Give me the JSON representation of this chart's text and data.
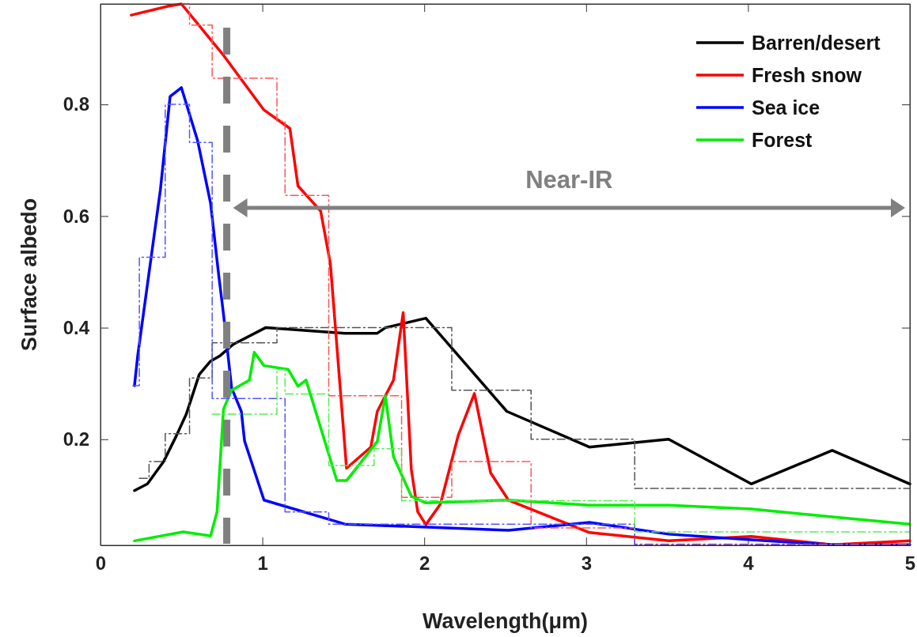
{
  "chart_data": {
    "type": "line",
    "xlabel": "Wavelength(μm)",
    "ylabel": "Surface albedo",
    "xlim": [
      0,
      5
    ],
    "ylim": [
      0.01,
      0.98
    ],
    "xticks": [
      0,
      1,
      2,
      3,
      4,
      5
    ],
    "yticks": [
      0.2,
      0.4,
      0.6,
      0.8
    ],
    "grid": false,
    "legend": "top right",
    "marker": "none",
    "series": [
      {
        "name": "Barren/desert",
        "color": "#000000",
        "x": [
          0.21,
          0.29,
          0.39,
          0.47,
          0.53,
          0.61,
          0.68,
          0.74,
          0.82,
          1.02,
          1.51,
          1.71,
          1.76,
          2.01,
          2.51,
          3.02,
          3.51,
          4.02,
          4.52,
          5.0
        ],
        "values": [
          0.108,
          0.12,
          0.16,
          0.207,
          0.245,
          0.316,
          0.34,
          0.35,
          0.37,
          0.4,
          0.39,
          0.39,
          0.4,
          0.417,
          0.25,
          0.186,
          0.2,
          0.12,
          0.18,
          0.12
        ]
      },
      {
        "name": "Fresh snow",
        "color": "#ff0000",
        "x": [
          0.19,
          0.42,
          0.5,
          0.76,
          1.01,
          1.17,
          1.22,
          1.36,
          1.42,
          1.52,
          1.67,
          1.71,
          1.81,
          1.87,
          1.92,
          1.96,
          2.01,
          2.1,
          2.21,
          2.31,
          2.41,
          2.52,
          3.02,
          3.51,
          4.02,
          4.52,
          5.0
        ],
        "values": [
          0.96,
          0.976,
          0.98,
          0.888,
          0.79,
          0.757,
          0.654,
          0.609,
          0.515,
          0.148,
          0.186,
          0.25,
          0.306,
          0.427,
          0.146,
          0.07,
          0.047,
          0.084,
          0.207,
          0.282,
          0.14,
          0.091,
          0.033,
          0.018,
          0.026,
          0.011,
          0.018
        ]
      },
      {
        "name": "Sea ice",
        "color": "#0000ff",
        "x": [
          0.21,
          0.23,
          0.37,
          0.43,
          0.5,
          0.6,
          0.68,
          0.73,
          0.76,
          0.81,
          0.87,
          0.89,
          1.01,
          1.51,
          2.52,
          3.02,
          3.51,
          4.02,
          4.52,
          5.0
        ],
        "values": [
          0.296,
          0.35,
          0.647,
          0.814,
          0.83,
          0.735,
          0.623,
          0.495,
          0.424,
          0.292,
          0.25,
          0.197,
          0.091,
          0.048,
          0.037,
          0.051,
          0.03,
          0.02,
          0.011,
          0.011
        ]
      },
      {
        "name": "Forest",
        "color": "#00ee00",
        "x": [
          0.21,
          0.51,
          0.68,
          0.72,
          0.76,
          0.81,
          0.92,
          0.95,
          1.01,
          1.16,
          1.22,
          1.27,
          1.46,
          1.52,
          1.71,
          1.76,
          1.81,
          1.92,
          2.01,
          2.52,
          3.02,
          3.51,
          4.02,
          4.52,
          5.0
        ],
        "values": [
          0.018,
          0.034,
          0.027,
          0.07,
          0.254,
          0.288,
          0.306,
          0.356,
          0.332,
          0.325,
          0.295,
          0.306,
          0.126,
          0.126,
          0.196,
          0.278,
          0.169,
          0.098,
          0.086,
          0.091,
          0.082,
          0.082,
          0.075,
          0.061,
          0.048
        ]
      },
      {
        "type": "step",
        "color": "#555555",
        "line_style": "dashed",
        "x": [
          0.24,
          0.3,
          0.4,
          0.55,
          0.69,
          1.09,
          2.17,
          2.66,
          3.3,
          5.0
        ],
        "values": [
          0.13,
          0.16,
          0.21,
          0.31,
          0.373,
          0.4,
          0.288,
          0.2,
          0.112,
          0.112
        ]
      },
      {
        "type": "step",
        "color": "#ff5555",
        "line_style": "dashed",
        "x": [
          0.5,
          0.55,
          0.69,
          1.09,
          1.14,
          1.41,
          1.86,
          2.17,
          2.66,
          3.3,
          5.0
        ],
        "values": [
          0.98,
          0.942,
          0.847,
          0.77,
          0.637,
          0.278,
          0.096,
          0.16,
          0.041,
          0.012,
          0.012
        ]
      },
      {
        "type": "step",
        "color": "#5555ff",
        "line_style": "dashed",
        "x": [
          0.2,
          0.24,
          0.4,
          0.55,
          0.69,
          1.14,
          1.41,
          3.3,
          5.0
        ],
        "values": [
          0.296,
          0.526,
          0.8,
          0.732,
          0.273,
          0.07,
          0.048,
          0.011,
          0.011
        ]
      },
      {
        "type": "step",
        "color": "#55ee55",
        "line_style": "dashed",
        "x": [
          0.69,
          1.09,
          1.14,
          1.41,
          1.69,
          1.86,
          3.3,
          5.0
        ],
        "values": [
          0.245,
          0.325,
          0.281,
          0.153,
          0.183,
          0.09,
          0.034,
          0.034
        ]
      }
    ],
    "ref_lines": [
      {
        "axis": "x",
        "value": 0.78,
        "color": "#808080",
        "line_style": "dashed"
      }
    ],
    "annotations": [
      "Near-IR"
    ]
  }
}
